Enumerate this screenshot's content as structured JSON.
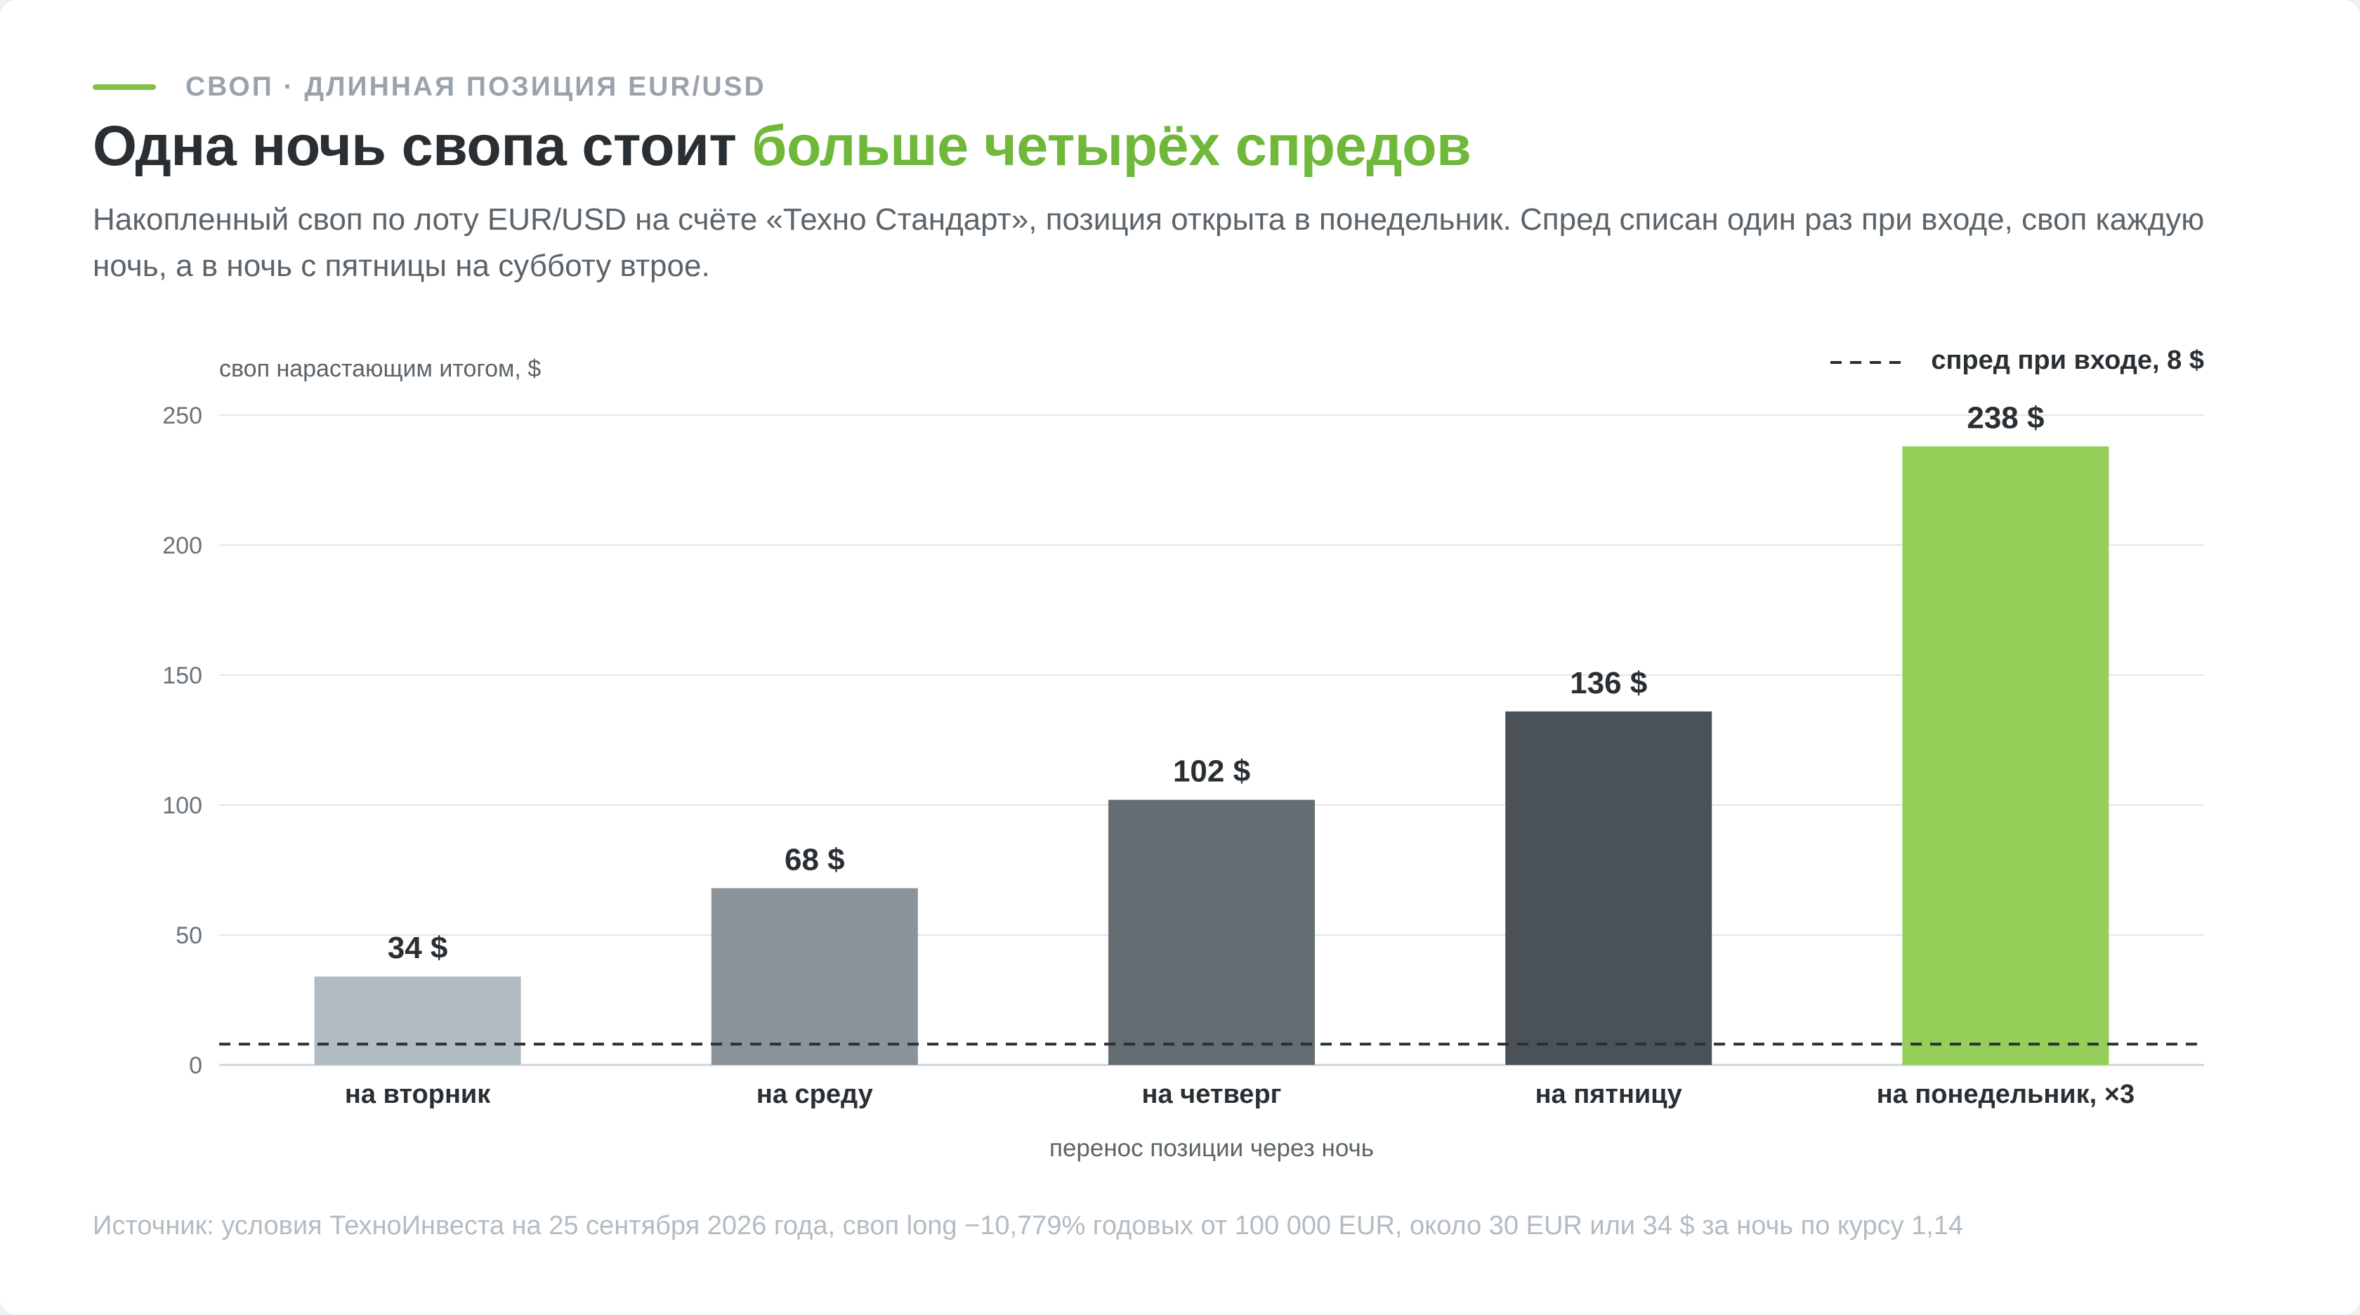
{
  "header": {
    "kicker": "СВОП · ДЛИННАЯ ПОЗИЦИЯ EUR/USD",
    "title_main": "Одна ночь свопа стоит ",
    "title_accent": "больше четырёх спредов",
    "subtitle": "Накопленный своп по лоту EUR/USD на счёте «Техно Стандарт», позиция открыта в понедельник. Спред списан один раз при входе, своп каждую ночь, а в ночь с пятницы на субботу втрое."
  },
  "chart_data": {
    "type": "bar",
    "ylabel": "своп нарастающим итогом, $",
    "xlabel": "перенос позиции через ночь",
    "ylim": [
      0,
      250
    ],
    "yticks": [
      0,
      50,
      100,
      150,
      200,
      250
    ],
    "grid": true,
    "categories": [
      "на вторник",
      "на среду",
      "на четверг",
      "на пятницу",
      "на понедельник, ×3"
    ],
    "values": [
      34,
      68,
      102,
      136,
      238
    ],
    "value_labels": [
      "34 $",
      "68 $",
      "102 $",
      "136 $",
      "238 $"
    ],
    "bar_colors": [
      "#b0bbc2",
      "#8b939a",
      "#636d72",
      "#4a5157",
      "#95cf5a"
    ],
    "reference_line": {
      "value": 8,
      "label": "спред при входе, 8 $",
      "style": "dashed",
      "color": "#2a2f33"
    },
    "legend_position": "top-right"
  },
  "footer": {
    "source": "Источник: условия ТехноИнвеста на 25 сентября 2026 года, своп long −10,779% годовых от 100 000 EUR, около 30 EUR или 34 $ за ночь по курсу 1,14"
  },
  "colors": {
    "accent": "#6fb83a",
    "kicker_bar": "#7fc146",
    "text_dark": "#2a2f33",
    "text_muted": "#5b646b",
    "source_text": "#b3bcc3"
  }
}
